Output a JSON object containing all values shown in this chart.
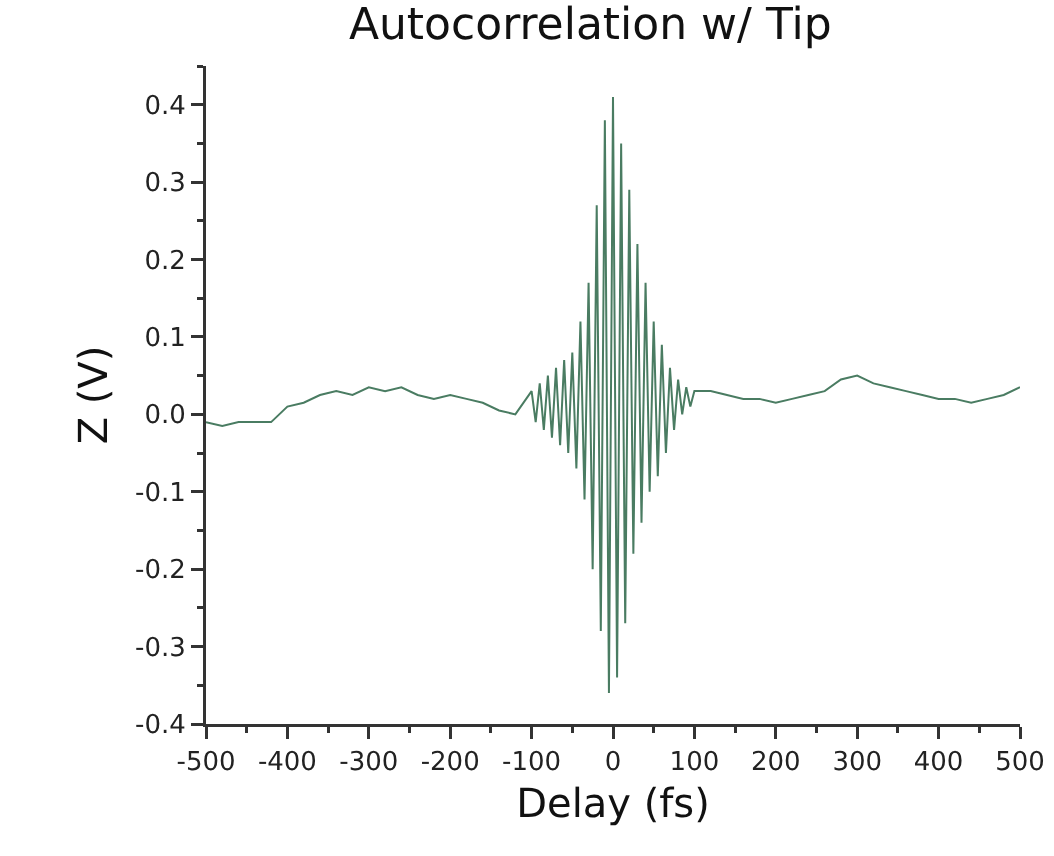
{
  "chart_data": {
    "type": "line",
    "title": "Autocorrelation w/ Tip",
    "xlabel": "Delay (fs)",
    "ylabel": "Z (V)",
    "x": [
      -500,
      -480,
      -460,
      -440,
      -420,
      -400,
      -380,
      -360,
      -340,
      -320,
      -300,
      -280,
      -260,
      -240,
      -220,
      -200,
      -180,
      -160,
      -140,
      -120,
      -100,
      -95,
      -90,
      -85,
      -80,
      -75,
      -70,
      -65,
      -60,
      -55,
      -50,
      -45,
      -40,
      -35,
      -30,
      -25,
      -20,
      -15,
      -10,
      -5,
      0,
      5,
      10,
      15,
      20,
      25,
      30,
      35,
      40,
      45,
      50,
      55,
      60,
      65,
      70,
      75,
      80,
      85,
      90,
      95,
      100,
      120,
      140,
      160,
      180,
      200,
      220,
      240,
      260,
      280,
      300,
      320,
      340,
      360,
      380,
      400,
      420,
      440,
      460,
      480,
      500
    ],
    "series": [
      {
        "color": "#4a7c62",
        "values": [
          -0.01,
          -0.015,
          -0.01,
          -0.01,
          -0.01,
          0.01,
          0.015,
          0.025,
          0.03,
          0.025,
          0.035,
          0.03,
          0.035,
          0.025,
          0.02,
          0.025,
          0.02,
          0.015,
          0.005,
          0.0,
          0.03,
          -0.01,
          0.04,
          -0.02,
          0.05,
          -0.03,
          0.06,
          -0.04,
          0.07,
          -0.05,
          0.08,
          -0.07,
          0.12,
          -0.11,
          0.17,
          -0.2,
          0.27,
          -0.28,
          0.38,
          -0.36,
          0.41,
          -0.34,
          0.35,
          -0.27,
          0.29,
          -0.18,
          0.22,
          -0.14,
          0.17,
          -0.1,
          0.12,
          -0.08,
          0.09,
          -0.05,
          0.06,
          -0.02,
          0.045,
          0.0,
          0.035,
          0.01,
          0.03,
          0.03,
          0.025,
          0.02,
          0.02,
          0.015,
          0.02,
          0.025,
          0.03,
          0.045,
          0.05,
          0.04,
          0.035,
          0.03,
          0.025,
          0.02,
          0.02,
          0.015,
          0.02,
          0.025,
          0.035
        ]
      }
    ],
    "xlim": [
      -500,
      500
    ],
    "xticks": [
      -500,
      -400,
      -300,
      -200,
      -100,
      0,
      100,
      200,
      300,
      400,
      500
    ],
    "ylim": [
      -0.4,
      0.45
    ],
    "yticks": [
      -0.4,
      -0.3,
      -0.2,
      -0.1,
      {
        "value": 0,
        "label": "0.0"
      },
      0.1,
      0.2,
      0.3,
      0.4
    ],
    "grid": false,
    "marker": "none",
    "line_style": "solid"
  }
}
